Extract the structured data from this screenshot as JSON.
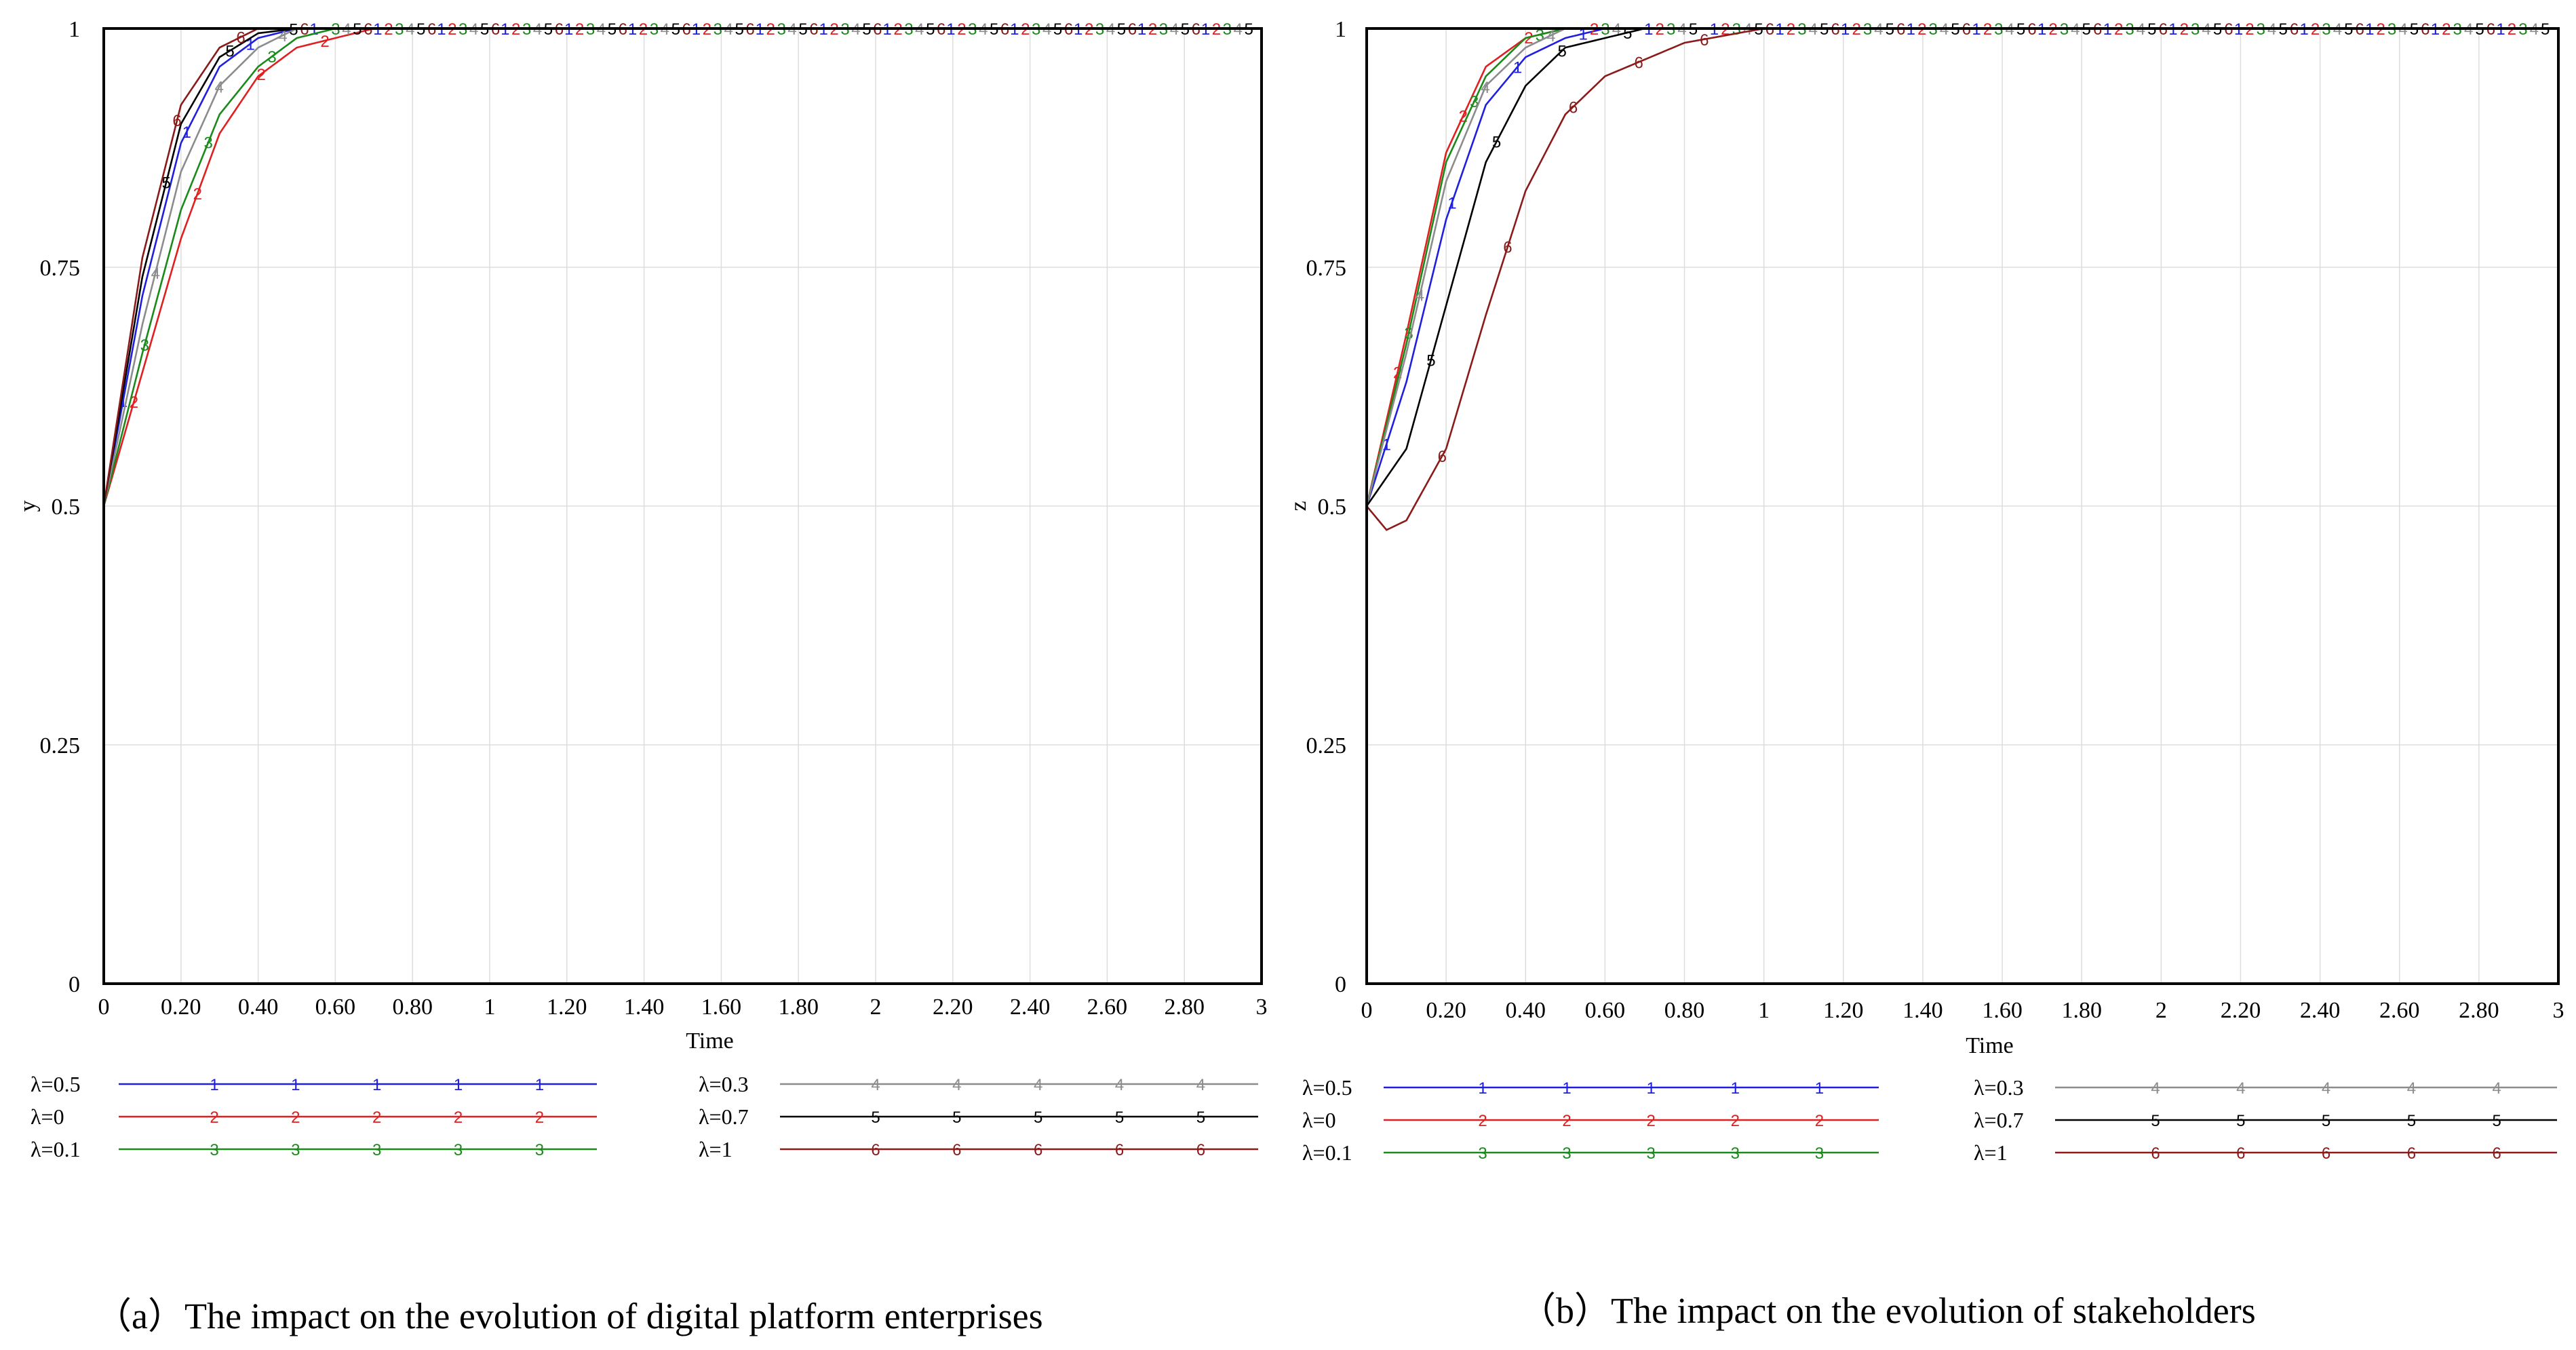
{
  "chart_data": [
    {
      "type": "line",
      "id": "a",
      "ylabel": "y",
      "xlabel": "Time",
      "xlim": [
        0,
        3
      ],
      "ylim": [
        0,
        1
      ],
      "x_ticks": [
        "0",
        "0.20",
        "0.40",
        "0.60",
        "0.80",
        "1",
        "1.20",
        "1.40",
        "1.60",
        "1.80",
        "2",
        "2.20",
        "2.40",
        "2.60",
        "2.80",
        "3"
      ],
      "y_ticks": [
        "0",
        "0.25",
        "0.5",
        "0.75",
        "1"
      ],
      "caption": "（a）The impact on the evolution of digital platform enterprises",
      "series": [
        {
          "name": "λ=0.5",
          "marker": "1",
          "color": "#1f1fe0",
          "points": [
            [
              0,
              0.5
            ],
            [
              0.1,
              0.72
            ],
            [
              0.2,
              0.88
            ],
            [
              0.3,
              0.96
            ],
            [
              0.4,
              0.99
            ],
            [
              0.5,
              1.0
            ],
            [
              3,
              1.0
            ]
          ]
        },
        {
          "name": "λ=0",
          "marker": "2",
          "color": "#e02020",
          "points": [
            [
              0,
              0.5
            ],
            [
              0.1,
              0.64
            ],
            [
              0.2,
              0.78
            ],
            [
              0.3,
              0.89
            ],
            [
              0.4,
              0.95
            ],
            [
              0.5,
              0.98
            ],
            [
              0.6,
              0.99
            ],
            [
              0.7,
              1.0
            ],
            [
              3,
              1.0
            ]
          ]
        },
        {
          "name": "λ=0.1",
          "marker": "3",
          "color": "#1a8a1a",
          "points": [
            [
              0,
              0.5
            ],
            [
              0.1,
              0.66
            ],
            [
              0.2,
              0.81
            ],
            [
              0.3,
              0.91
            ],
            [
              0.4,
              0.96
            ],
            [
              0.5,
              0.99
            ],
            [
              0.6,
              1.0
            ],
            [
              3,
              1.0
            ]
          ]
        },
        {
          "name": "λ=0.3",
          "marker": "4",
          "color": "#8c8c8c",
          "points": [
            [
              0,
              0.5
            ],
            [
              0.1,
              0.69
            ],
            [
              0.2,
              0.85
            ],
            [
              0.3,
              0.94
            ],
            [
              0.4,
              0.98
            ],
            [
              0.5,
              1.0
            ],
            [
              3,
              1.0
            ]
          ]
        },
        {
          "name": "λ=0.7",
          "marker": "5",
          "color": "#000000",
          "points": [
            [
              0,
              0.5
            ],
            [
              0.1,
              0.74
            ],
            [
              0.2,
              0.9
            ],
            [
              0.3,
              0.97
            ],
            [
              0.4,
              0.995
            ],
            [
              0.5,
              1.0
            ],
            [
              3,
              1.0
            ]
          ]
        },
        {
          "name": "λ=1",
          "marker": "6",
          "color": "#8b1a1a",
          "points": [
            [
              0,
              0.5
            ],
            [
              0.1,
              0.76
            ],
            [
              0.2,
              0.92
            ],
            [
              0.3,
              0.98
            ],
            [
              0.4,
              1.0
            ],
            [
              3,
              1.0
            ]
          ]
        }
      ]
    },
    {
      "type": "line",
      "id": "b",
      "ylabel": "z",
      "xlabel": "Time",
      "xlim": [
        0,
        3
      ],
      "ylim": [
        0,
        1
      ],
      "x_ticks": [
        "0",
        "0.20",
        "0.40",
        "0.60",
        "0.80",
        "1",
        "1.20",
        "1.40",
        "1.60",
        "1.80",
        "2",
        "2.20",
        "2.40",
        "2.60",
        "2.80",
        "3"
      ],
      "y_ticks": [
        "0",
        "0.25",
        "0.5",
        "0.75",
        "1"
      ],
      "caption": "（b）The impact on the evolution of stakeholders",
      "series": [
        {
          "name": "λ=0.5",
          "marker": "1",
          "color": "#1f1fe0",
          "points": [
            [
              0,
              0.5
            ],
            [
              0.1,
              0.63
            ],
            [
              0.2,
              0.8
            ],
            [
              0.3,
              0.92
            ],
            [
              0.4,
              0.97
            ],
            [
              0.5,
              0.99
            ],
            [
              0.6,
              1.0
            ],
            [
              3,
              1.0
            ]
          ]
        },
        {
          "name": "λ=0",
          "marker": "2",
          "color": "#e02020",
          "points": [
            [
              0,
              0.5
            ],
            [
              0.1,
              0.68
            ],
            [
              0.2,
              0.87
            ],
            [
              0.3,
              0.96
            ],
            [
              0.4,
              0.99
            ],
            [
              0.5,
              1.0
            ],
            [
              3,
              1.0
            ]
          ]
        },
        {
          "name": "λ=0.1",
          "marker": "3",
          "color": "#1a8a1a",
          "points": [
            [
              0,
              0.5
            ],
            [
              0.1,
              0.67
            ],
            [
              0.2,
              0.86
            ],
            [
              0.3,
              0.95
            ],
            [
              0.4,
              0.99
            ],
            [
              0.5,
              1.0
            ],
            [
              3,
              1.0
            ]
          ]
        },
        {
          "name": "λ=0.3",
          "marker": "4",
          "color": "#8c8c8c",
          "points": [
            [
              0,
              0.5
            ],
            [
              0.1,
              0.66
            ],
            [
              0.2,
              0.84
            ],
            [
              0.3,
              0.94
            ],
            [
              0.4,
              0.98
            ],
            [
              0.5,
              1.0
            ],
            [
              3,
              1.0
            ]
          ]
        },
        {
          "name": "λ=0.7",
          "marker": "5",
          "color": "#000000",
          "points": [
            [
              0,
              0.5
            ],
            [
              0.1,
              0.56
            ],
            [
              0.2,
              0.71
            ],
            [
              0.3,
              0.86
            ],
            [
              0.4,
              0.94
            ],
            [
              0.5,
              0.98
            ],
            [
              0.6,
              0.99
            ],
            [
              0.7,
              1.0
            ],
            [
              3,
              1.0
            ]
          ]
        },
        {
          "name": "λ=1",
          "marker": "6",
          "color": "#8b1a1a",
          "points": [
            [
              0,
              0.5
            ],
            [
              0.05,
              0.475
            ],
            [
              0.1,
              0.485
            ],
            [
              0.2,
              0.56
            ],
            [
              0.3,
              0.7
            ],
            [
              0.4,
              0.83
            ],
            [
              0.5,
              0.91
            ],
            [
              0.6,
              0.95
            ],
            [
              0.8,
              0.985
            ],
            [
              1.0,
              1.0
            ],
            [
              3,
              1.0
            ]
          ]
        }
      ]
    }
  ]
}
